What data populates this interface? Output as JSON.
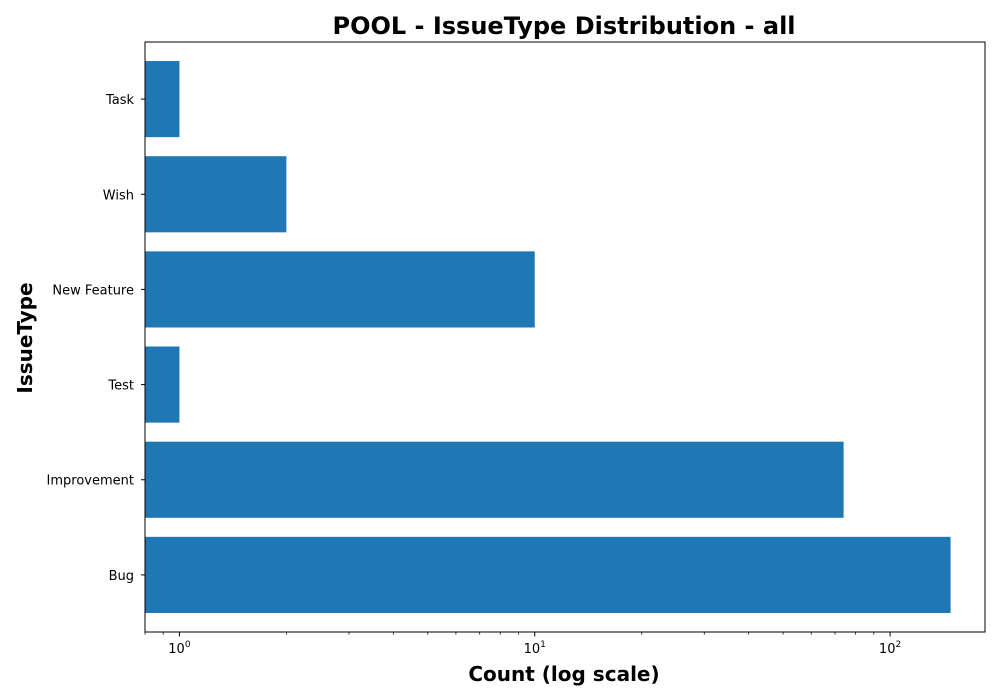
{
  "chart_data": {
    "type": "bar",
    "orientation": "horizontal",
    "title": "POOL - IssueType Distribution - all",
    "xlabel": "Count (log scale)",
    "ylabel": "IssueType",
    "x_scale": "log",
    "xlim": [
      0.8,
      185
    ],
    "x_ticks": [
      {
        "base": "10",
        "exp": "0",
        "value": 1
      },
      {
        "base": "10",
        "exp": "1",
        "value": 10
      },
      {
        "base": "10",
        "exp": "2",
        "value": 100
      }
    ],
    "categories": [
      "Bug",
      "Improvement",
      "Test",
      "New Feature",
      "Wish",
      "Task"
    ],
    "values": [
      148,
      74,
      1,
      10,
      2,
      1
    ],
    "bar_color": "#1f77b4",
    "grid": false,
    "legend": false
  }
}
